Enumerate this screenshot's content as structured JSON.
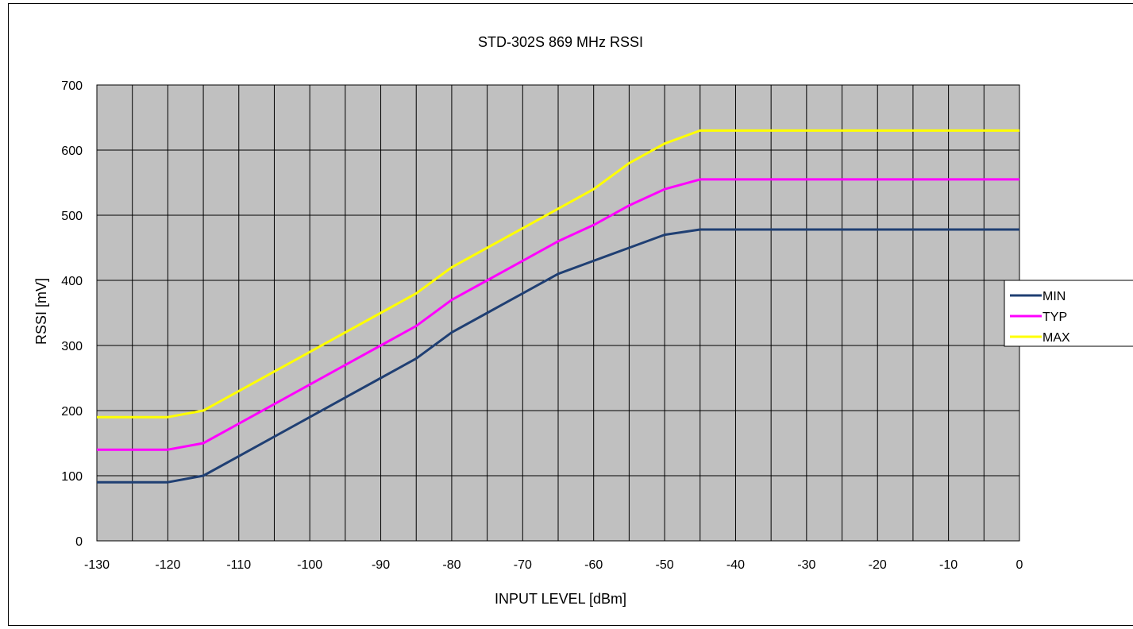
{
  "chart_data": {
    "type": "line",
    "title": "STD-302S 869 MHz  RSSI",
    "xlabel": "INPUT LEVEL [dBm]",
    "ylabel": "RSSI [mV]",
    "xlim": [
      -130,
      0
    ],
    "ylim": [
      0,
      700
    ],
    "x_ticks": [
      -130,
      -120,
      -110,
      -100,
      -90,
      -80,
      -70,
      -60,
      -50,
      -40,
      -30,
      -20,
      -10,
      0
    ],
    "y_ticks": [
      0,
      100,
      200,
      300,
      400,
      500,
      600,
      700
    ],
    "grid": true,
    "x_minor_step": 5,
    "legend_position": "right",
    "plot_background": "#c0c0c0",
    "x": [
      -130,
      -125,
      -120,
      -115,
      -110,
      -105,
      -100,
      -95,
      -90,
      -85,
      -80,
      -75,
      -70,
      -65,
      -60,
      -55,
      -50,
      -45,
      -40,
      -35,
      -30,
      -25,
      -20,
      -15,
      -10,
      -5,
      0
    ],
    "series": [
      {
        "name": "MIN",
        "color": "#1f3f73",
        "values": [
          90,
          90,
          90,
          100,
          130,
          160,
          190,
          220,
          250,
          280,
          320,
          350,
          380,
          410,
          430,
          450,
          470,
          478,
          478,
          478,
          478,
          478,
          478,
          478,
          478,
          478,
          478
        ]
      },
      {
        "name": "TYP",
        "color": "#ff00ff",
        "values": [
          140,
          140,
          140,
          150,
          180,
          210,
          240,
          270,
          300,
          330,
          370,
          400,
          430,
          460,
          485,
          515,
          540,
          555,
          555,
          555,
          555,
          555,
          555,
          555,
          555,
          555,
          555
        ]
      },
      {
        "name": "MAX",
        "color": "#ffff00",
        "values": [
          190,
          190,
          190,
          200,
          230,
          260,
          290,
          320,
          350,
          380,
          420,
          450,
          480,
          510,
          540,
          580,
          610,
          630,
          630,
          630,
          630,
          630,
          630,
          630,
          630,
          630,
          630
        ]
      }
    ]
  }
}
